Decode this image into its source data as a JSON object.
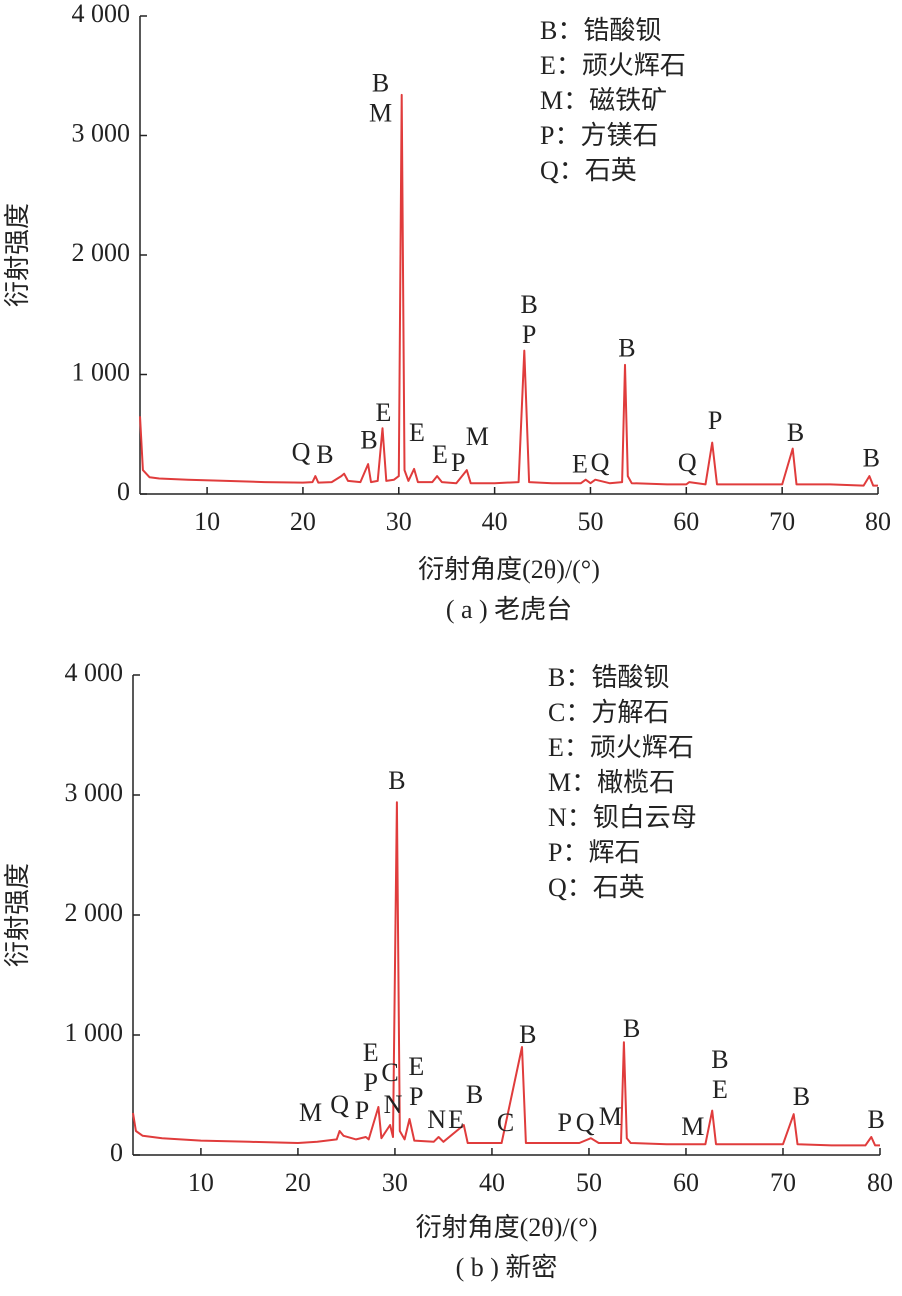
{
  "chart_data": [
    {
      "type": "line",
      "x": [
        3,
        3.3,
        4,
        5,
        8,
        12,
        16,
        20,
        21,
        21.3,
        21.6,
        23,
        24,
        24.3,
        24.7,
        26,
        26.8,
        27.1,
        27.8,
        28.3,
        28.7,
        29.5,
        30,
        30.3,
        30.6,
        31,
        31.6,
        32,
        33.5,
        34,
        34.5,
        36,
        37.1,
        37.5,
        40,
        42.5,
        43.1,
        43.6,
        46,
        49,
        49.5,
        50,
        50.5,
        52,
        53.3,
        53.6,
        53.9,
        54.3,
        58,
        60,
        60.3,
        62,
        62.7,
        63.2,
        66,
        70,
        71.1,
        71.5,
        75,
        78.5,
        79.1,
        79.5,
        80
      ],
      "series": [
        {
          "color": "#e03c3c",
          "values": [
            650,
            200,
            140,
            130,
            120,
            110,
            100,
            95,
            100,
            150,
            95,
            100,
            150,
            170,
            110,
            100,
            250,
            100,
            110,
            550,
            110,
            120,
            150,
            3340,
            200,
            110,
            210,
            100,
            100,
            150,
            100,
            90,
            200,
            90,
            90,
            100,
            1200,
            100,
            90,
            90,
            120,
            90,
            120,
            90,
            100,
            1080,
            150,
            90,
            80,
            80,
            100,
            80,
            430,
            80,
            80,
            80,
            380,
            80,
            80,
            70,
            150,
            70,
            70
          ]
        }
      ],
      "xlim": [
        3,
        80
      ],
      "xticks": [
        10,
        20,
        30,
        40,
        50,
        60,
        70,
        80
      ],
      "ylim": [
        0,
        4000
      ],
      "yticks": [
        0,
        {
          "value": 1000,
          "label": "1 000"
        },
        {
          "value": 2000,
          "label": "2 000"
        },
        {
          "value": 3000,
          "label": "3 000"
        },
        {
          "value": 4000,
          "label": "4 000"
        }
      ],
      "xlabel": "衍射角度(2θ)/(°)",
      "ylabel": "衍射强度",
      "caption": "( a ) 老虎台",
      "legend_items": [
        "B：锆酸钡",
        "E：顽火辉石",
        "M：磁铁矿",
        "P：方镁石",
        "Q：石英"
      ],
      "annotations": [
        {
          "lines": [
            "B",
            "M"
          ],
          "x": 28.1,
          "y": 3060
        },
        {
          "lines": [
            "Q"
          ],
          "x": 19.8,
          "y": 220
        },
        {
          "lines": [
            "B"
          ],
          "x": 22.3,
          "y": 200
        },
        {
          "lines": [
            "B"
          ],
          "x": 26.9,
          "y": 320
        },
        {
          "lines": [
            "E"
          ],
          "x": 28.4,
          "y": 550
        },
        {
          "lines": [
            "E"
          ],
          "x": 31.9,
          "y": 385
        },
        {
          "lines": [
            "E"
          ],
          "x": 34.3,
          "y": 200
        },
        {
          "lines": [
            "P"
          ],
          "x": 36.2,
          "y": 135
        },
        {
          "lines": [
            "M"
          ],
          "x": 38.2,
          "y": 350
        },
        {
          "lines": [
            "B",
            "P"
          ],
          "x": 43.6,
          "y": 1205
        },
        {
          "lines": [
            "E"
          ],
          "x": 48.9,
          "y": 120
        },
        {
          "lines": [
            "Q"
          ],
          "x": 51,
          "y": 135
        },
        {
          "lines": [
            "B"
          ],
          "x": 53.8,
          "y": 1090
        },
        {
          "lines": [
            "Q"
          ],
          "x": 60.1,
          "y": 135
        },
        {
          "lines": [
            "P"
          ],
          "x": 63,
          "y": 485
        },
        {
          "lines": [
            "B"
          ],
          "x": 71.4,
          "y": 385
        },
        {
          "lines": [
            "B"
          ],
          "x": 79.3,
          "y": 170
        }
      ]
    },
    {
      "type": "line",
      "x": [
        3,
        3.3,
        4,
        6,
        10,
        15,
        20,
        22,
        24,
        24.3,
        24.7,
        26,
        27,
        27.3,
        28.3,
        28.6,
        29.5,
        29.8,
        30.2,
        30.5,
        31,
        31.5,
        32,
        34,
        34.5,
        35,
        37.1,
        37.5,
        41,
        43.1,
        43.5,
        47,
        49,
        50.2,
        51,
        53.3,
        53.6,
        53.9,
        54.3,
        58,
        60,
        62,
        62.7,
        63.1,
        66,
        70,
        71.1,
        71.5,
        75,
        78.5,
        79.1,
        79.5,
        80
      ],
      "series": [
        {
          "color": "#e03c3c",
          "values": [
            350,
            200,
            160,
            140,
            120,
            110,
            100,
            110,
            130,
            200,
            160,
            130,
            150,
            130,
            400,
            140,
            250,
            150,
            2940,
            200,
            130,
            300,
            120,
            110,
            150,
            110,
            250,
            100,
            100,
            900,
            100,
            100,
            100,
            140,
            100,
            100,
            940,
            140,
            100,
            90,
            90,
            90,
            370,
            90,
            90,
            90,
            340,
            90,
            80,
            80,
            150,
            80,
            80
          ]
        }
      ],
      "xlim": [
        3,
        80
      ],
      "xticks": [
        10,
        20,
        30,
        40,
        50,
        60,
        70,
        80
      ],
      "ylim": [
        0,
        4000
      ],
      "yticks": [
        0,
        {
          "value": 1000,
          "label": "1 000"
        },
        {
          "value": 2000,
          "label": "2 000"
        },
        {
          "value": 3000,
          "label": "3 000"
        },
        {
          "value": 4000,
          "label": "4 000"
        }
      ],
      "xlabel": "衍射角度(2θ)/(°)",
      "ylabel": "衍射强度",
      "caption": "( b ) 新密",
      "legend_items": [
        "B：锆酸钡",
        "C：方解石",
        "E：顽火辉石",
        "M：橄榄石",
        "N：钡白云母",
        "P：辉石",
        "Q：石英"
      ],
      "annotations": [
        {
          "lines": [
            "B"
          ],
          "x": 30.2,
          "y": 2990
        },
        {
          "lines": [
            "M"
          ],
          "x": 21.3,
          "y": 225
        },
        {
          "lines": [
            "Q"
          ],
          "x": 24.3,
          "y": 290
        },
        {
          "lines": [
            "P"
          ],
          "x": 26.6,
          "y": 240
        },
        {
          "lines": [
            "E",
            "P"
          ],
          "x": 27.5,
          "y": 475
        },
        {
          "lines": [
            "C"
          ],
          "x": 29.5,
          "y": 560
        },
        {
          "lines": [
            "N"
          ],
          "x": 29.8,
          "y": 290
        },
        {
          "lines": [
            "E",
            "P"
          ],
          "x": 32.2,
          "y": 360
        },
        {
          "lines": [
            "N"
          ],
          "x": 34.3,
          "y": 165
        },
        {
          "lines": [
            "E"
          ],
          "x": 36.3,
          "y": 165
        },
        {
          "lines": [
            "B"
          ],
          "x": 38.2,
          "y": 375
        },
        {
          "lines": [
            "C"
          ],
          "x": 41.4,
          "y": 140
        },
        {
          "lines": [
            "P"
          ],
          "x": 47.5,
          "y": 140
        },
        {
          "lines": [
            "Q"
          ],
          "x": 49.6,
          "y": 140
        },
        {
          "lines": [
            "M"
          ],
          "x": 52.2,
          "y": 190
        },
        {
          "lines": [
            "B"
          ],
          "x": 43.7,
          "y": 875
        },
        {
          "lines": [
            "B"
          ],
          "x": 54.4,
          "y": 925
        },
        {
          "lines": [
            "M"
          ],
          "x": 60.7,
          "y": 110
        },
        {
          "lines": [
            "B",
            "E"
          ],
          "x": 63.5,
          "y": 415
        },
        {
          "lines": [
            "B"
          ],
          "x": 71.9,
          "y": 360
        },
        {
          "lines": [
            "B"
          ],
          "x": 79.6,
          "y": 165
        }
      ]
    }
  ]
}
